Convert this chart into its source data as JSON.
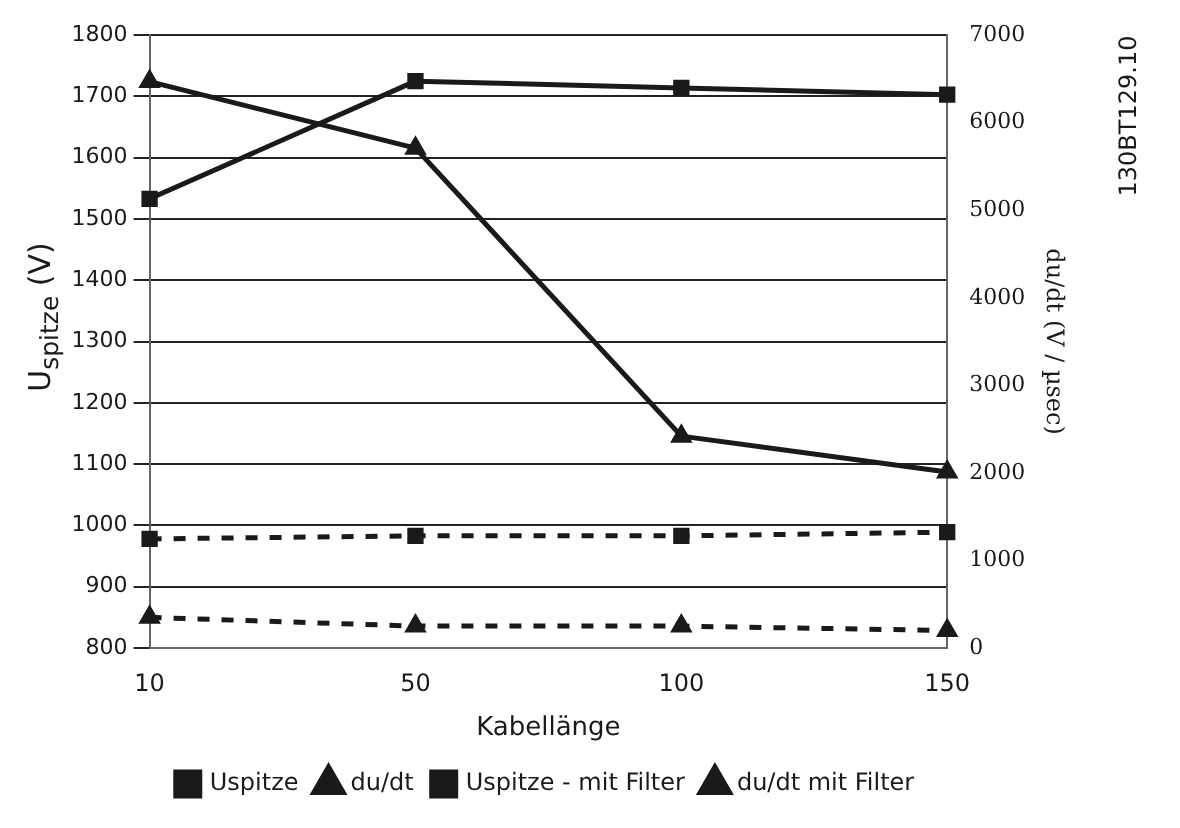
{
  "chart_data": {
    "type": "line",
    "categories": [
      "10",
      "50",
      "100",
      "150"
    ],
    "xlabel": "Kabellänge",
    "ylabel": "U$_{spitze}$ (V)",
    "y2label": "du/dt (V / µsec)",
    "ylim": [
      800,
      1800
    ],
    "yticks": [
      800,
      900,
      1000,
      1100,
      1200,
      1300,
      1400,
      1500,
      1600,
      1700,
      1800
    ],
    "y2lim": [
      0,
      7000
    ],
    "y2ticks": [
      0,
      1000,
      2000,
      3000,
      4000,
      5000,
      6000,
      7000
    ],
    "grid": "y",
    "legend": "bottom",
    "annotations": [
      "130BT129.10"
    ],
    "series": [
      {
        "name": "Uspitze",
        "color": "#1a1a1a",
        "marker": "square",
        "line_style": "solid",
        "values": [
          1533,
          1725,
          1714,
          1703
        ]
      },
      {
        "name": "du/dt",
        "color": "#1a1a1a",
        "marker": "triangle",
        "line_style": "solid",
        "axis": "y2",
        "values": [
          6470,
          5710,
          2420,
          2010
        ]
      },
      {
        "name": "Uspitze - mit Filter",
        "color": "#1a1a1a",
        "marker": "square",
        "line_style": "dashed",
        "values": [
          978,
          983,
          983,
          989
        ]
      },
      {
        "name": "du/dt mit Filter",
        "color": "#1a1a1a",
        "marker": "triangle",
        "line_style": "dashed",
        "axis": "y2",
        "values": [
          350,
          250,
          250,
          200
        ]
      }
    ]
  }
}
